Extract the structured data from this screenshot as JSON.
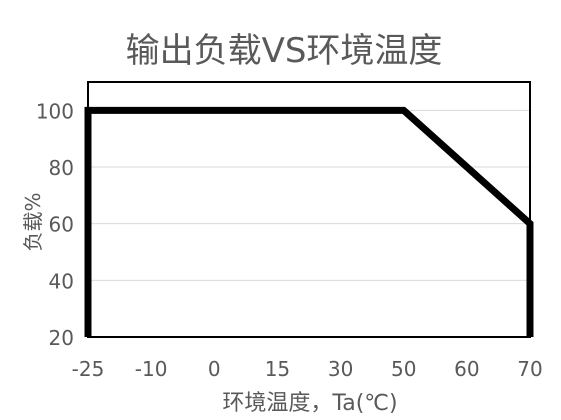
{
  "chart_data": {
    "type": "line",
    "title": "输出负载VS环境温度",
    "xlabel": "环境温度，Ta(℃)",
    "ylabel": "负载%",
    "x_ticks": [
      "-25",
      "-10",
      "0",
      "15",
      "30",
      "50",
      "60",
      "70"
    ],
    "y_ticks": [
      "20",
      "40",
      "60",
      "80",
      "100"
    ],
    "ylim": [
      20,
      110
    ],
    "grid": true,
    "series": [
      {
        "points": [
          {
            "x": -25,
            "y": 20
          },
          {
            "x": -25,
            "y": 100
          },
          {
            "x": 50,
            "y": 100
          },
          {
            "x": 70,
            "y": 60
          },
          {
            "x": 70,
            "y": 20
          }
        ]
      }
    ]
  },
  "colors": {
    "line": "#000000",
    "grid": "#d9d9d9",
    "frame": "#000000",
    "title": "#595959",
    "text": "#595959"
  }
}
